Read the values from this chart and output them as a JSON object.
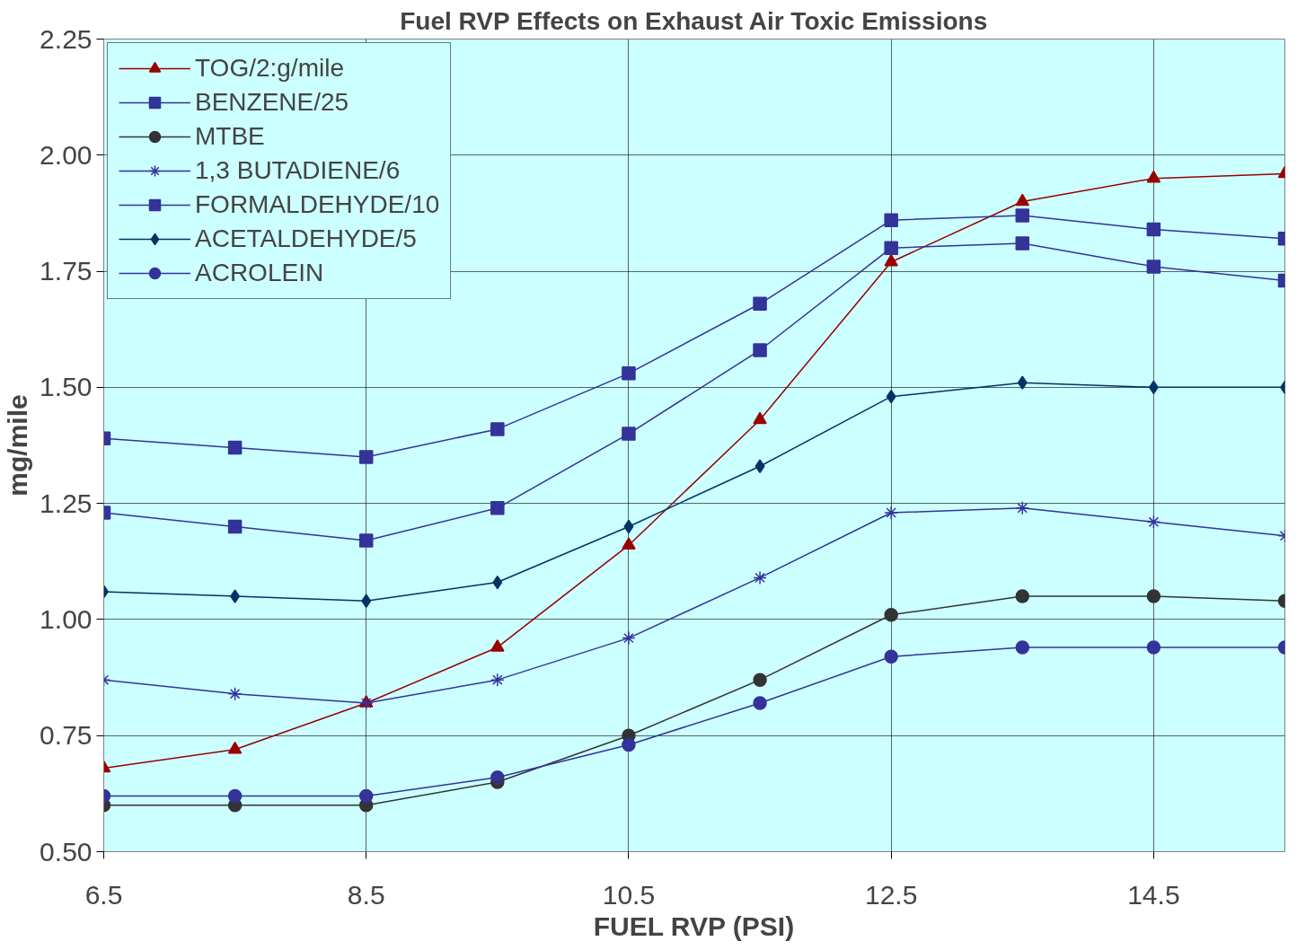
{
  "chart_data": {
    "type": "line",
    "title": "Fuel RVP Effects on Exhaust Air Toxic Emissions",
    "xlabel": "FUEL RVP (PSI)",
    "ylabel": "mg/mile",
    "x": [
      6.5,
      7.5,
      8.5,
      9.5,
      10.5,
      11.5,
      12.5,
      13.5,
      14.5,
      15.5
    ],
    "xlim": [
      6.5,
      15.5
    ],
    "xticks": [
      6.5,
      8.5,
      10.5,
      12.5,
      14.5
    ],
    "ylim": [
      0.5,
      2.25
    ],
    "yticks": [
      {
        "value": 0.5,
        "label": "0.50"
      },
      {
        "value": 0.75,
        "label": "0.75"
      },
      {
        "value": 1.0,
        "label": "1.00"
      },
      {
        "value": 1.25,
        "label": "1.25"
      },
      {
        "value": 1.5,
        "label": "1.50"
      },
      {
        "value": 1.75,
        "label": "1.75"
      },
      {
        "value": 2.0,
        "label": "2.00"
      },
      {
        "value": 2.25,
        "label": "2.25"
      }
    ],
    "grid": true,
    "legend": "top left",
    "line_style": "solid",
    "series": [
      {
        "name": "TOG/2:g/mile",
        "color": "#990000",
        "marker": "triangle",
        "values": [
          0.68,
          0.72,
          0.82,
          0.94,
          1.16,
          1.43,
          1.77,
          1.9,
          1.95,
          1.96
        ]
      },
      {
        "name": "BENZENE/25",
        "color": "#333399",
        "marker": "square",
        "values": [
          1.23,
          1.2,
          1.17,
          1.24,
          1.4,
          1.58,
          1.8,
          1.81,
          1.76,
          1.73
        ]
      },
      {
        "name": "MTBE",
        "color": "#333333",
        "marker": "circle",
        "values": [
          0.6,
          0.6,
          0.6,
          0.65,
          0.75,
          0.87,
          1.01,
          1.05,
          1.05,
          1.04
        ]
      },
      {
        "name": "1,3 BUTADIENE/6",
        "color": "#333399",
        "marker": "cross",
        "values": [
          0.87,
          0.84,
          0.82,
          0.87,
          0.96,
          1.09,
          1.23,
          1.24,
          1.21,
          1.18
        ]
      },
      {
        "name": "FORMALDEHYDE/10",
        "color": "#333399",
        "marker": "square",
        "values": [
          1.39,
          1.37,
          1.35,
          1.41,
          1.53,
          1.68,
          1.86,
          1.87,
          1.84,
          1.82
        ]
      },
      {
        "name": "ACETALDEHYDE/5",
        "color": "#003366",
        "marker": "diamond",
        "values": [
          1.06,
          1.05,
          1.04,
          1.08,
          1.2,
          1.33,
          1.48,
          1.51,
          1.5,
          1.5
        ]
      },
      {
        "name": "ACROLEIN",
        "color": "#333399",
        "marker": "circle",
        "values": [
          0.62,
          0.62,
          0.62,
          0.66,
          0.73,
          0.82,
          0.92,
          0.94,
          0.94,
          0.94
        ]
      }
    ]
  }
}
